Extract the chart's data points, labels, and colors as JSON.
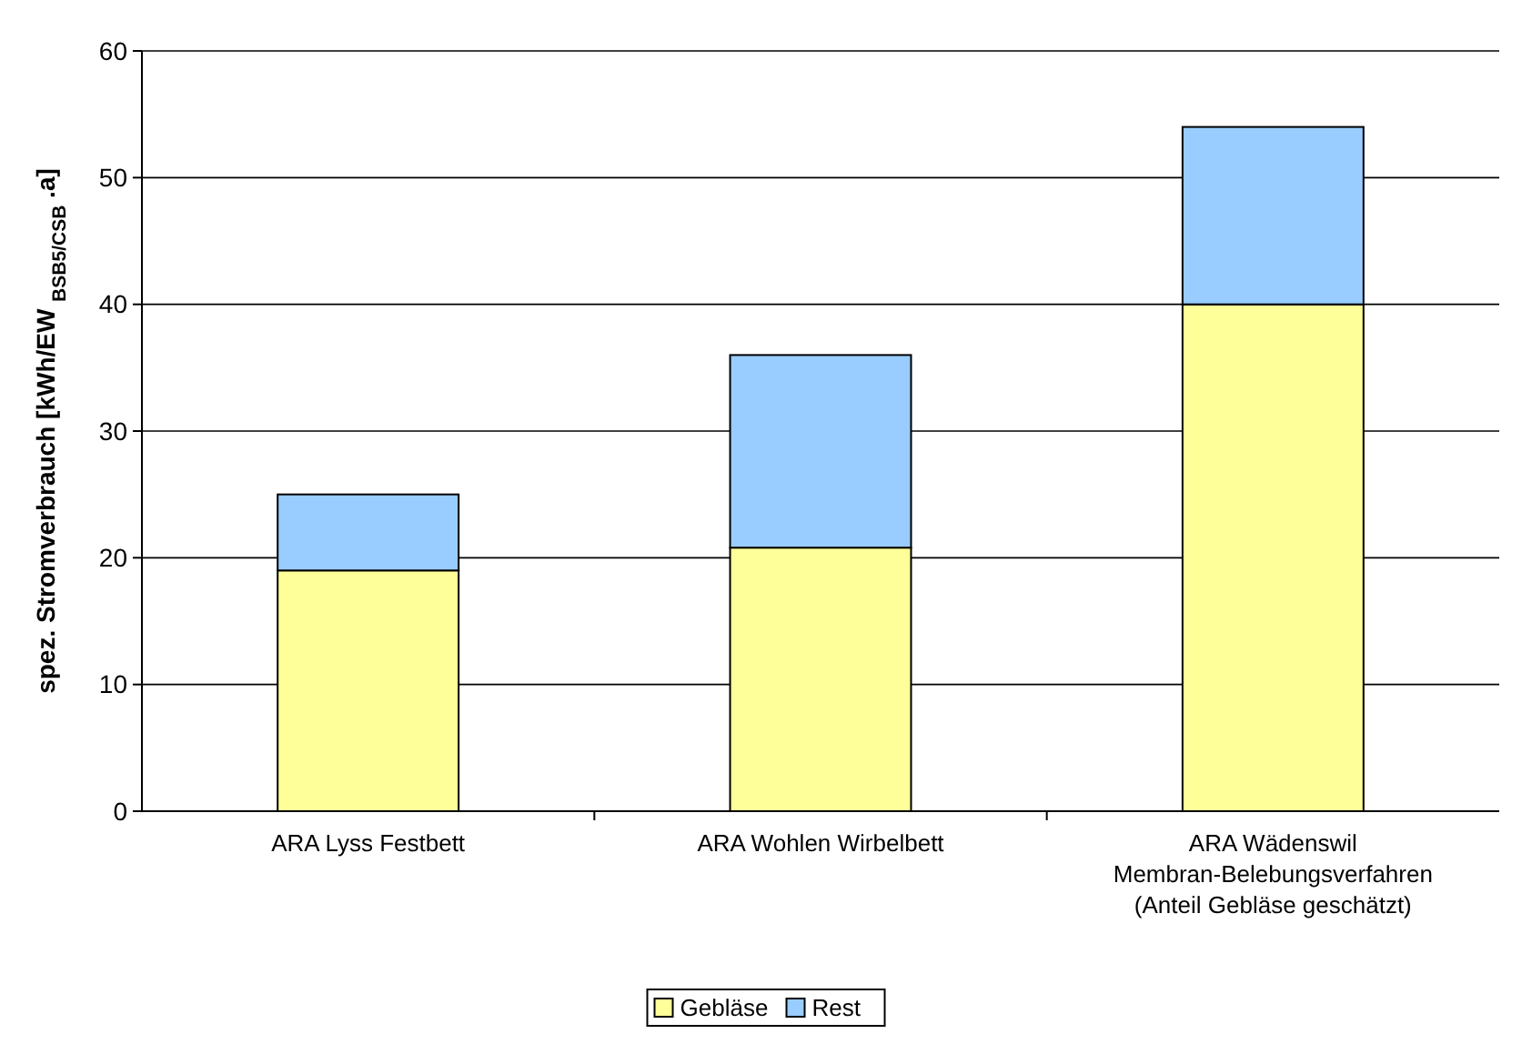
{
  "chart_data": {
    "type": "bar",
    "stacked": true,
    "ylabel": "spez. Stromverbrauch [kWh/EW $_{BSB5/CSB}$ .a]",
    "categories": [
      "ARA Lyss Festbett",
      "ARA Wohlen Wirbelbett",
      "ARA Wädenswil Membran-Belebungsverfahren (Anteil Gebläse geschätzt)"
    ],
    "series": [
      {
        "name": "Gebläse",
        "color": "#ffff99",
        "values": [
          19,
          20.8,
          40
        ]
      },
      {
        "name": "Rest",
        "color": "#99ccff",
        "values": [
          6,
          15.2,
          14
        ]
      }
    ],
    "ylim": [
      0,
      60
    ],
    "yticks": [
      0,
      10,
      20,
      30,
      40,
      50,
      60
    ],
    "grid": "y",
    "legend": "bottom"
  }
}
